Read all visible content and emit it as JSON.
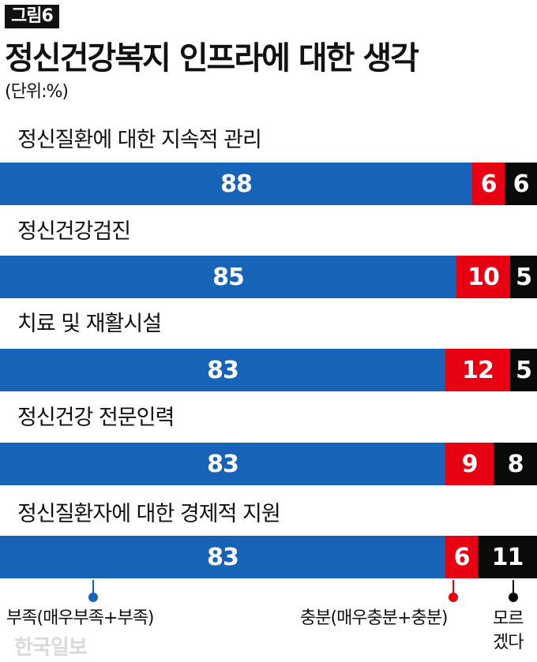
{
  "figure_tag": "그림6",
  "title": "정신건강복지 인프라에 대한 생각",
  "unit": "(단위:%)",
  "watermark": "한국일보",
  "chart_data": {
    "type": "bar",
    "stacked": true,
    "orientation": "horizontal",
    "categories": [
      "정신질환에 대한 지속적 관리",
      "정신건강검진",
      "치료 및 재활시설",
      "정신건강 전문인력",
      "정신질환자에 대한 경제적 지원"
    ],
    "series": [
      {
        "name": "부족(매우부족+부족)",
        "values": [
          88,
          85,
          83,
          83,
          83
        ],
        "color": "#1663b8"
      },
      {
        "name": "충분(매우충분+충분)",
        "values": [
          6,
          10,
          12,
          9,
          6
        ],
        "color": "#e60012"
      },
      {
        "name": "모르겠다",
        "values": [
          6,
          5,
          5,
          8,
          11
        ],
        "color": "#0a0a0a"
      }
    ],
    "legend": [
      "부족(매우부족+부족)",
      "충분(매우충분+충분)",
      "모르\n겠다"
    ],
    "xlim": [
      0,
      100
    ],
    "grid": false
  }
}
